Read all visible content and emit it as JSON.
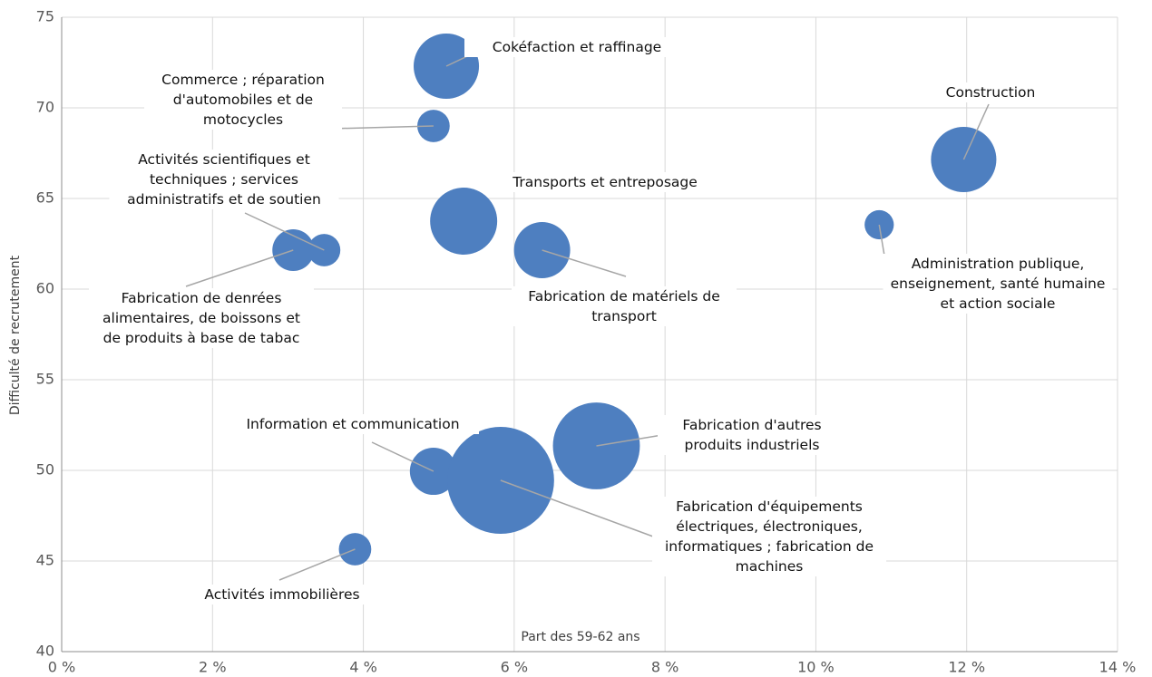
{
  "chart_data": {
    "type": "bubble",
    "x_label": "Part des 59-62 ans",
    "y_label": "Difficulté de recrutement",
    "color": "#4e7fc0",
    "grid": true,
    "xlim": [
      0,
      14
    ],
    "ylim": [
      40,
      75
    ],
    "xticks": [
      {
        "value": 0,
        "label": "0 %"
      },
      {
        "value": 2,
        "label": "2 %"
      },
      {
        "value": 4,
        "label": "4 %"
      },
      {
        "value": 6,
        "label": "6 %"
      },
      {
        "value": 8,
        "label": "8 %"
      },
      {
        "value": 10,
        "label": "10 %"
      },
      {
        "value": 12,
        "label": "12 %"
      },
      {
        "value": 14,
        "label": "14 %"
      }
    ],
    "yticks": [
      40,
      45,
      50,
      55,
      60,
      65,
      70,
      75
    ],
    "labels": [
      "Cokéfaction et raffinage",
      "Commerce ; réparation d'automobiles et de motocycles",
      "Construction",
      "Administration publique, enseignement, santé humaine et action sociale",
      "Transports et entreposage",
      "Fabrication de matériels de transport",
      "Activités scientifiques et techniques ; services administratifs et de soutien",
      "Fabrication de denrées alimentaires, de boissons et de produits à base de tabac",
      "Information et communication",
      "Fabrication d'équipements électriques, électroniques, informatiques ; fabrication de machines",
      "Fabrication d'autres produits industriels",
      "Activités immobilières"
    ],
    "x": [
      5.1,
      4.93,
      11.96,
      10.84,
      5.33,
      6.37,
      3.48,
      3.07,
      4.93,
      5.82,
      7.09,
      3.89
    ],
    "values": [
      72.3,
      69.0,
      67.15,
      63.55,
      63.75,
      62.15,
      62.15,
      62.15,
      49.95,
      49.45,
      51.35,
      45.65
    ],
    "sizes": [
      130,
      32,
      130,
      26,
      137,
      96,
      32,
      53,
      68,
      348,
      230,
      32
    ]
  }
}
